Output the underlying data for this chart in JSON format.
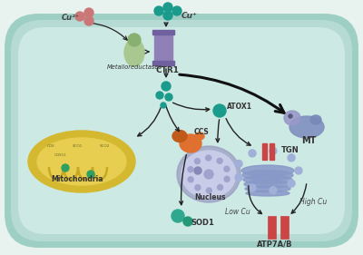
{
  "bg_outer": "#e8f2ef",
  "bg_cell_border1": "#9ecfc4",
  "bg_cell_border2": "#b5dbd4",
  "bg_cell_inner": "#cde9e4",
  "teal_dot": "#1a9b8c",
  "pink_dot": "#cc7777",
  "arrow_color": "#222222",
  "mito_outer": "#d4b830",
  "mito_inner": "#e8ce50",
  "mito_crista": "#c8a820",
  "nucleus_border": "#9898c0",
  "nucleus_fill": "#c8cce8",
  "nucleus_spot": "#a0a4cc",
  "ccs_main": "#e07030",
  "ccs_dark": "#c05a18",
  "meta_color": "#a8c890",
  "meta_dark": "#88b070",
  "ctr1_color": "#9080b8",
  "ctr1_dark": "#7060a0",
  "mt_body": "#8090c0",
  "mt_head": "#9898c8",
  "tgn_body": "#8898c8",
  "tgn_light": "#a0b0d8",
  "tgn_rod": "#cc4444",
  "sod1_color": "#30a890",
  "atp_rod": "#cc4444",
  "labels": {
    "cu2": "Cu²⁺",
    "cu1": "Cu⁺",
    "metalloreductases": "Metalloreductases",
    "ctr1": "CTR1",
    "atox1": "ATOX1",
    "mt": "MT",
    "ccs": "CCS",
    "nucleus": "Nucleus",
    "mitochondria": "Mitochondria",
    "sod1": "SOD1",
    "tgn": "TGN",
    "low_cu": "Low Cu",
    "high_cu": "High Cu",
    "atp7ab": "ATP7A/B"
  },
  "figsize": [
    4.0,
    2.81
  ],
  "dpi": 100
}
